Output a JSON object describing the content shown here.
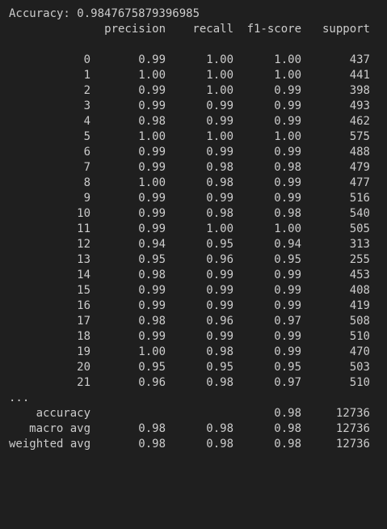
{
  "accuracy_line": "Accuracy: 0.9847675879396985",
  "header": {
    "precision": "precision",
    "recall": "recall",
    "f1": "f1-score",
    "support": "support"
  },
  "rows": [
    {
      "label": "0",
      "precision": "0.99",
      "recall": "1.00",
      "f1": "1.00",
      "support": "437"
    },
    {
      "label": "1",
      "precision": "1.00",
      "recall": "1.00",
      "f1": "1.00",
      "support": "441"
    },
    {
      "label": "2",
      "precision": "0.99",
      "recall": "1.00",
      "f1": "0.99",
      "support": "398"
    },
    {
      "label": "3",
      "precision": "0.99",
      "recall": "0.99",
      "f1": "0.99",
      "support": "493"
    },
    {
      "label": "4",
      "precision": "0.98",
      "recall": "0.99",
      "f1": "0.99",
      "support": "462"
    },
    {
      "label": "5",
      "precision": "1.00",
      "recall": "1.00",
      "f1": "1.00",
      "support": "575"
    },
    {
      "label": "6",
      "precision": "0.99",
      "recall": "0.99",
      "f1": "0.99",
      "support": "488"
    },
    {
      "label": "7",
      "precision": "0.99",
      "recall": "0.98",
      "f1": "0.98",
      "support": "479"
    },
    {
      "label": "8",
      "precision": "1.00",
      "recall": "0.98",
      "f1": "0.99",
      "support": "477"
    },
    {
      "label": "9",
      "precision": "0.99",
      "recall": "0.99",
      "f1": "0.99",
      "support": "516"
    },
    {
      "label": "10",
      "precision": "0.99",
      "recall": "0.98",
      "f1": "0.98",
      "support": "540"
    },
    {
      "label": "11",
      "precision": "0.99",
      "recall": "1.00",
      "f1": "1.00",
      "support": "505"
    },
    {
      "label": "12",
      "precision": "0.94",
      "recall": "0.95",
      "f1": "0.94",
      "support": "313"
    },
    {
      "label": "13",
      "precision": "0.95",
      "recall": "0.96",
      "f1": "0.95",
      "support": "255"
    },
    {
      "label": "14",
      "precision": "0.98",
      "recall": "0.99",
      "f1": "0.99",
      "support": "453"
    },
    {
      "label": "15",
      "precision": "0.99",
      "recall": "0.99",
      "f1": "0.99",
      "support": "408"
    },
    {
      "label": "16",
      "precision": "0.99",
      "recall": "0.99",
      "f1": "0.99",
      "support": "419"
    },
    {
      "label": "17",
      "precision": "0.98",
      "recall": "0.96",
      "f1": "0.97",
      "support": "508"
    },
    {
      "label": "18",
      "precision": "0.99",
      "recall": "0.99",
      "f1": "0.99",
      "support": "510"
    },
    {
      "label": "19",
      "precision": "1.00",
      "recall": "0.98",
      "f1": "0.99",
      "support": "470"
    },
    {
      "label": "20",
      "precision": "0.95",
      "recall": "0.95",
      "f1": "0.95",
      "support": "503"
    },
    {
      "label": "21",
      "precision": "0.96",
      "recall": "0.98",
      "f1": "0.97",
      "support": "510"
    }
  ],
  "ellipsis": "...",
  "summary": {
    "accuracy": {
      "label": "accuracy",
      "f1": "0.98",
      "support": "12736"
    },
    "macro": {
      "label": "macro avg",
      "precision": "0.98",
      "recall": "0.98",
      "f1": "0.98",
      "support": "12736"
    },
    "weighted": {
      "label": "weighted avg",
      "precision": "0.98",
      "recall": "0.98",
      "f1": "0.98",
      "support": "12736"
    }
  }
}
